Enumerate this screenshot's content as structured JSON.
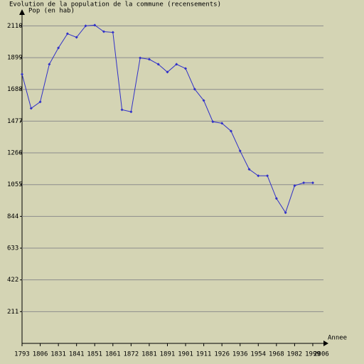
{
  "chart_data": {
    "type": "line",
    "title": "Evolution de la population de la commune (recensements)",
    "y_label": "Pop (en hab)",
    "x_label": "Annee",
    "categories": [
      "1793",
      null,
      "1806",
      null,
      "1831",
      null,
      "1841",
      null,
      "1851",
      null,
      "1861",
      null,
      "1872",
      null,
      "1881",
      null,
      "1891",
      null,
      "1901",
      null,
      "1911",
      null,
      "1926",
      null,
      "1936",
      null,
      "1954",
      null,
      "1968",
      null,
      "1982",
      null,
      "1999"
    ],
    "x_end_label": "2006",
    "series": [
      {
        "name": "Pop",
        "color": "#3030c8",
        "values": [
          1789,
          1562,
          1605,
          1855,
          1964,
          2058,
          2034,
          2110,
          2115,
          2072,
          2067,
          1553,
          1539,
          1897,
          1888,
          1855,
          1803,
          1855,
          1827,
          1690,
          1614,
          1473,
          1463,
          1411,
          1279,
          1157,
          1114,
          1114,
          963,
          869,
          1048,
          1067,
          1067
        ]
      }
    ],
    "ylim": [
      0,
      2164
    ],
    "yticks": [
      211,
      422,
      633,
      844,
      1055,
      1266,
      1477,
      1688,
      1899,
      2110
    ],
    "grid": true
  }
}
